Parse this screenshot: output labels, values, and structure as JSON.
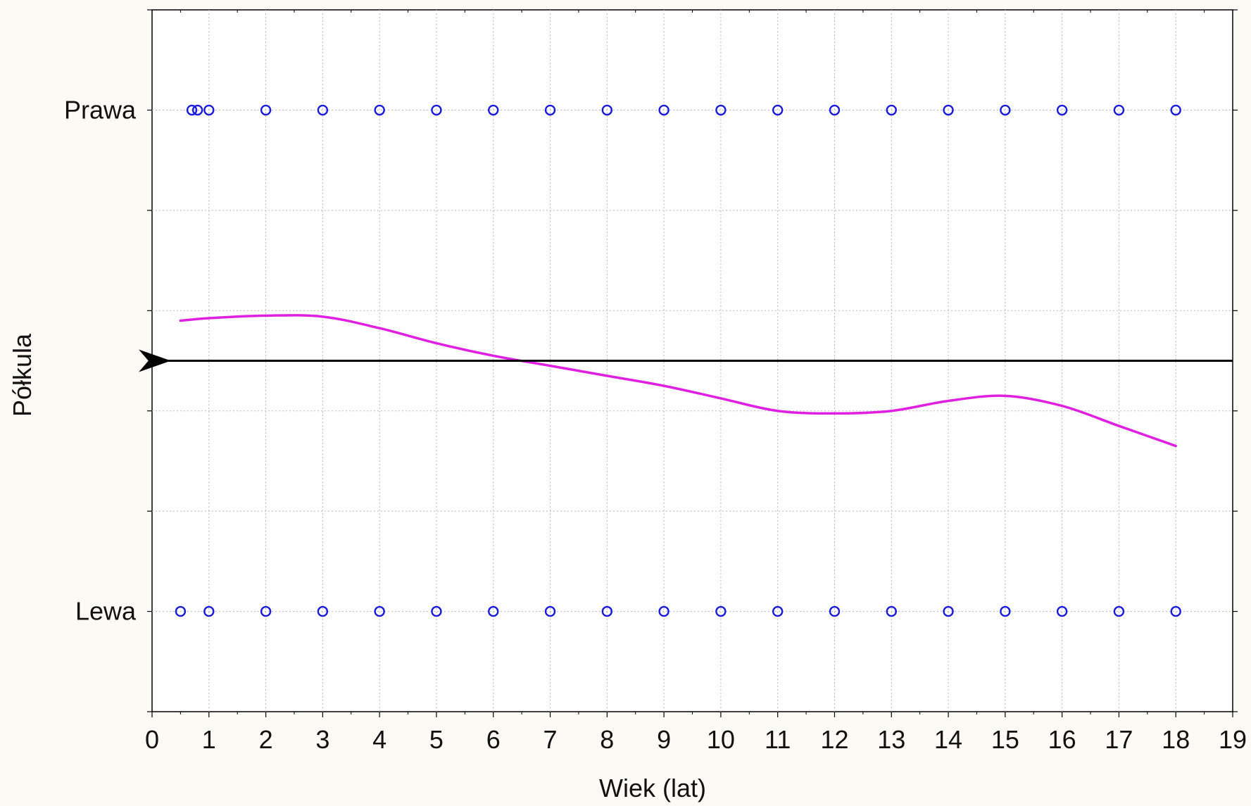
{
  "chart_data": {
    "type": "scatter",
    "title": "",
    "xlabel": "Wiek (lat)",
    "ylabel": "Półkula",
    "xlim": [
      0,
      19
    ],
    "x_ticks": [
      0,
      1,
      2,
      3,
      4,
      5,
      6,
      7,
      8,
      9,
      10,
      11,
      12,
      13,
      14,
      15,
      16,
      17,
      18,
      19
    ],
    "ylim": [
      -0.2,
      1.2
    ],
    "y_categories": [
      {
        "label": "Lewa",
        "value": 0
      },
      {
        "label": "Prawa",
        "value": 1
      }
    ],
    "grid": true,
    "legend": "none",
    "series": [
      {
        "type": "scatter",
        "marker": "circle-open",
        "color": "#1a1adb",
        "points": [
          {
            "x": 0.7,
            "y": 1
          },
          {
            "x": 0.8,
            "y": 1
          },
          {
            "x": 1,
            "y": 1
          },
          {
            "x": 2,
            "y": 1
          },
          {
            "x": 3,
            "y": 1
          },
          {
            "x": 4,
            "y": 1
          },
          {
            "x": 5,
            "y": 1
          },
          {
            "x": 6,
            "y": 1
          },
          {
            "x": 7,
            "y": 1
          },
          {
            "x": 8,
            "y": 1
          },
          {
            "x": 9,
            "y": 1
          },
          {
            "x": 10,
            "y": 1
          },
          {
            "x": 11,
            "y": 1
          },
          {
            "x": 12,
            "y": 1
          },
          {
            "x": 13,
            "y": 1
          },
          {
            "x": 14,
            "y": 1
          },
          {
            "x": 15,
            "y": 1
          },
          {
            "x": 16,
            "y": 1
          },
          {
            "x": 17,
            "y": 1
          },
          {
            "x": 18,
            "y": 1
          },
          {
            "x": 0.5,
            "y": 0
          },
          {
            "x": 1,
            "y": 0
          },
          {
            "x": 2,
            "y": 0
          },
          {
            "x": 3,
            "y": 0
          },
          {
            "x": 4,
            "y": 0
          },
          {
            "x": 5,
            "y": 0
          },
          {
            "x": 6,
            "y": 0
          },
          {
            "x": 7,
            "y": 0
          },
          {
            "x": 8,
            "y": 0
          },
          {
            "x": 9,
            "y": 0
          },
          {
            "x": 10,
            "y": 0
          },
          {
            "x": 11,
            "y": 0
          },
          {
            "x": 12,
            "y": 0
          },
          {
            "x": 13,
            "y": 0
          },
          {
            "x": 14,
            "y": 0
          },
          {
            "x": 15,
            "y": 0
          },
          {
            "x": 16,
            "y": 0
          },
          {
            "x": 17,
            "y": 0
          },
          {
            "x": 18,
            "y": 0
          }
        ]
      },
      {
        "type": "line",
        "smooth": true,
        "color": "#e020e0",
        "points": [
          {
            "x": 0.5,
            "y": 0.58
          },
          {
            "x": 1,
            "y": 0.585
          },
          {
            "x": 2,
            "y": 0.59
          },
          {
            "x": 3,
            "y": 0.588
          },
          {
            "x": 4,
            "y": 0.565
          },
          {
            "x": 5,
            "y": 0.535
          },
          {
            "x": 6,
            "y": 0.51
          },
          {
            "x": 7,
            "y": 0.49
          },
          {
            "x": 8,
            "y": 0.47
          },
          {
            "x": 9,
            "y": 0.45
          },
          {
            "x": 10,
            "y": 0.425
          },
          {
            "x": 11,
            "y": 0.4
          },
          {
            "x": 12,
            "y": 0.395
          },
          {
            "x": 13,
            "y": 0.4
          },
          {
            "x": 14,
            "y": 0.42
          },
          {
            "x": 15,
            "y": 0.43
          },
          {
            "x": 16,
            "y": 0.41
          },
          {
            "x": 17,
            "y": 0.37
          },
          {
            "x": 18,
            "y": 0.33
          }
        ]
      },
      {
        "type": "reference-line",
        "color": "#000000",
        "y": 0.5,
        "x_from": 19,
        "x_to": 0.25,
        "arrow": "left"
      }
    ]
  }
}
